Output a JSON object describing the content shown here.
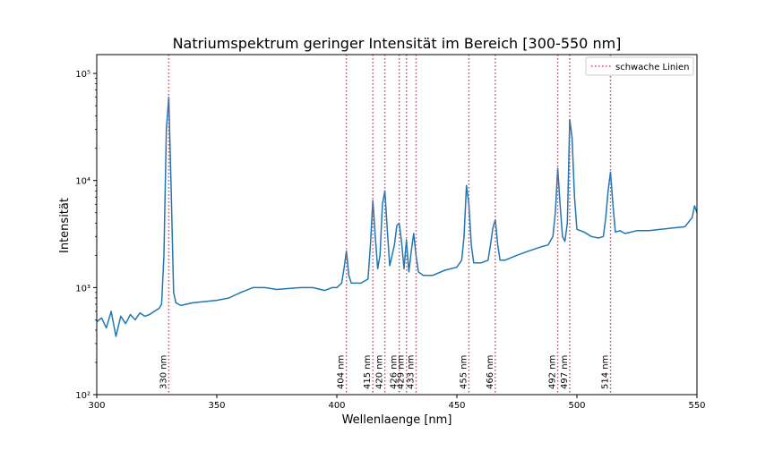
{
  "chart_data": {
    "type": "line",
    "title": "Natriumspektrum geringer Intensität im Bereich [300-550 nm]",
    "xlabel": "Wellenlaenge [nm]",
    "ylabel": "Intensität",
    "xlim": [
      300,
      550
    ],
    "ylim": [
      100,
      150000
    ],
    "y_scale": "log",
    "x_ticks": [
      300,
      350,
      400,
      450,
      500,
      550
    ],
    "y_ticks": [
      {
        "value": 100,
        "label": "10²"
      },
      {
        "value": 1000,
        "label": "10³"
      },
      {
        "value": 10000,
        "label": "10⁴"
      },
      {
        "value": 100000,
        "label": "10⁵"
      }
    ],
    "legend": {
      "position": "top-right",
      "entries": [
        {
          "label": "schwache Linien",
          "style": "dotted",
          "color": "#d9475e"
        }
      ]
    },
    "series": [
      {
        "color": "#1f77b4",
        "x": [
          300,
          302,
          304,
          306,
          308,
          310,
          312,
          314,
          316,
          318,
          320,
          322,
          324,
          326,
          327,
          328,
          329,
          330,
          331,
          332,
          333,
          335,
          340,
          345,
          350,
          355,
          360,
          365,
          370,
          375,
          380,
          385,
          390,
          395,
          398,
          400,
          402,
          403,
          404,
          405,
          406,
          410,
          413,
          414,
          415,
          416,
          417,
          418,
          419,
          420,
          421,
          422,
          424,
          425,
          426,
          427,
          428,
          429,
          430,
          431,
          432,
          433,
          434,
          436,
          440,
          445,
          450,
          452,
          453,
          454,
          455,
          456,
          457,
          460,
          463,
          464,
          465,
          466,
          467,
          468,
          470,
          475,
          480,
          485,
          488,
          490,
          491,
          492,
          493,
          494,
          495,
          496,
          497,
          498,
          499,
          500,
          503,
          506,
          509,
          511,
          512,
          513,
          514,
          515,
          516,
          518,
          520,
          525,
          530,
          535,
          540,
          545,
          548,
          549,
          550
        ],
        "values": [
          480,
          520,
          420,
          600,
          350,
          540,
          460,
          560,
          500,
          580,
          540,
          560,
          600,
          640,
          700,
          2000,
          30000,
          60000,
          8000,
          900,
          720,
          680,
          720,
          740,
          760,
          800,
          900,
          1000,
          1000,
          960,
          980,
          1000,
          1000,
          940,
          1000,
          1000,
          1100,
          1500,
          2200,
          1300,
          1100,
          1100,
          1200,
          2500,
          6500,
          3000,
          1500,
          2000,
          6000,
          8000,
          3500,
          1600,
          2500,
          3800,
          4000,
          2600,
          1500,
          2800,
          1400,
          2200,
          3200,
          2000,
          1400,
          1300,
          1300,
          1450,
          1550,
          1800,
          3000,
          9000,
          6000,
          2500,
          1700,
          1700,
          1800,
          2500,
          3600,
          4300,
          2500,
          1800,
          1800,
          2000,
          2200,
          2400,
          2500,
          3000,
          5000,
          13000,
          6000,
          3000,
          2700,
          4000,
          37000,
          25000,
          7000,
          3500,
          3300,
          3000,
          2900,
          3000,
          4500,
          8000,
          12000,
          6000,
          3300,
          3400,
          3200,
          3400,
          3400,
          3500,
          3600,
          3700,
          4500,
          5800,
          5000
        ]
      }
    ],
    "vlines": [
      {
        "x": 330,
        "label": "330 nm"
      },
      {
        "x": 404,
        "label": "404 nm"
      },
      {
        "x": 415,
        "label": "415 nm"
      },
      {
        "x": 420,
        "label": "420 nm"
      },
      {
        "x": 426,
        "label": "426 nm"
      },
      {
        "x": 429,
        "label": "429 nm"
      },
      {
        "x": 433,
        "label": "433 nm"
      },
      {
        "x": 455,
        "label": "455 nm"
      },
      {
        "x": 466,
        "label": "466 nm"
      },
      {
        "x": 492,
        "label": "492 nm"
      },
      {
        "x": 497,
        "label": "497 nm"
      },
      {
        "x": 514,
        "label": "514 nm"
      }
    ]
  }
}
